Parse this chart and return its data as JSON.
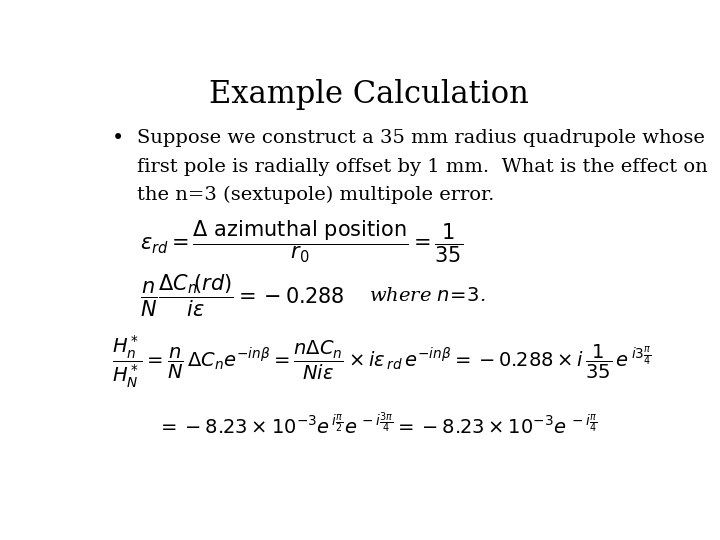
{
  "title": "Example Calculation",
  "background_color": "#ffffff",
  "text_color": "#000000",
  "title_fontsize": 22,
  "body_fontsize": 14,
  "math_fontsize": 14,
  "bullet_line1": "Suppose we construct a 35 mm radius quadrupole whose",
  "bullet_line2": "first pole is radially offset by 1 mm.  What is the effect on",
  "bullet_line3": "the n=3 (sextupole) multipole error."
}
